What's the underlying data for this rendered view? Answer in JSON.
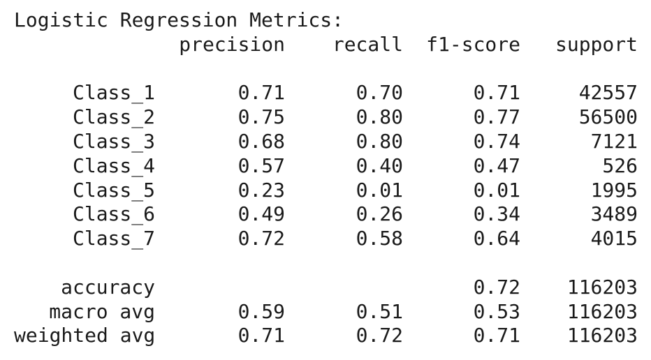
{
  "title": "Logistic Regression Metrics:",
  "headers": {
    "precision": "precision",
    "recall": "recall",
    "f1": "f1-score",
    "support": "support"
  },
  "class_rows": [
    {
      "label": "Class_1",
      "precision": "0.71",
      "recall": "0.70",
      "f1": "0.71",
      "support": "42557"
    },
    {
      "label": "Class_2",
      "precision": "0.75",
      "recall": "0.80",
      "f1": "0.77",
      "support": "56500"
    },
    {
      "label": "Class_3",
      "precision": "0.68",
      "recall": "0.80",
      "f1": "0.74",
      "support": "7121"
    },
    {
      "label": "Class_4",
      "precision": "0.57",
      "recall": "0.40",
      "f1": "0.47",
      "support": "526"
    },
    {
      "label": "Class_5",
      "precision": "0.23",
      "recall": "0.01",
      "f1": "0.01",
      "support": "1995"
    },
    {
      "label": "Class_6",
      "precision": "0.49",
      "recall": "0.26",
      "f1": "0.34",
      "support": "3489"
    },
    {
      "label": "Class_7",
      "precision": "0.72",
      "recall": "0.58",
      "f1": "0.64",
      "support": "4015"
    }
  ],
  "summary_rows": [
    {
      "label": "accuracy",
      "precision": "",
      "recall": "",
      "f1": "0.72",
      "support": "116203"
    },
    {
      "label": "macro avg",
      "precision": "0.59",
      "recall": "0.51",
      "f1": "0.53",
      "support": "116203"
    },
    {
      "label": "weighted avg",
      "precision": "0.71",
      "recall": "0.72",
      "f1": "0.71",
      "support": "116203"
    }
  ]
}
